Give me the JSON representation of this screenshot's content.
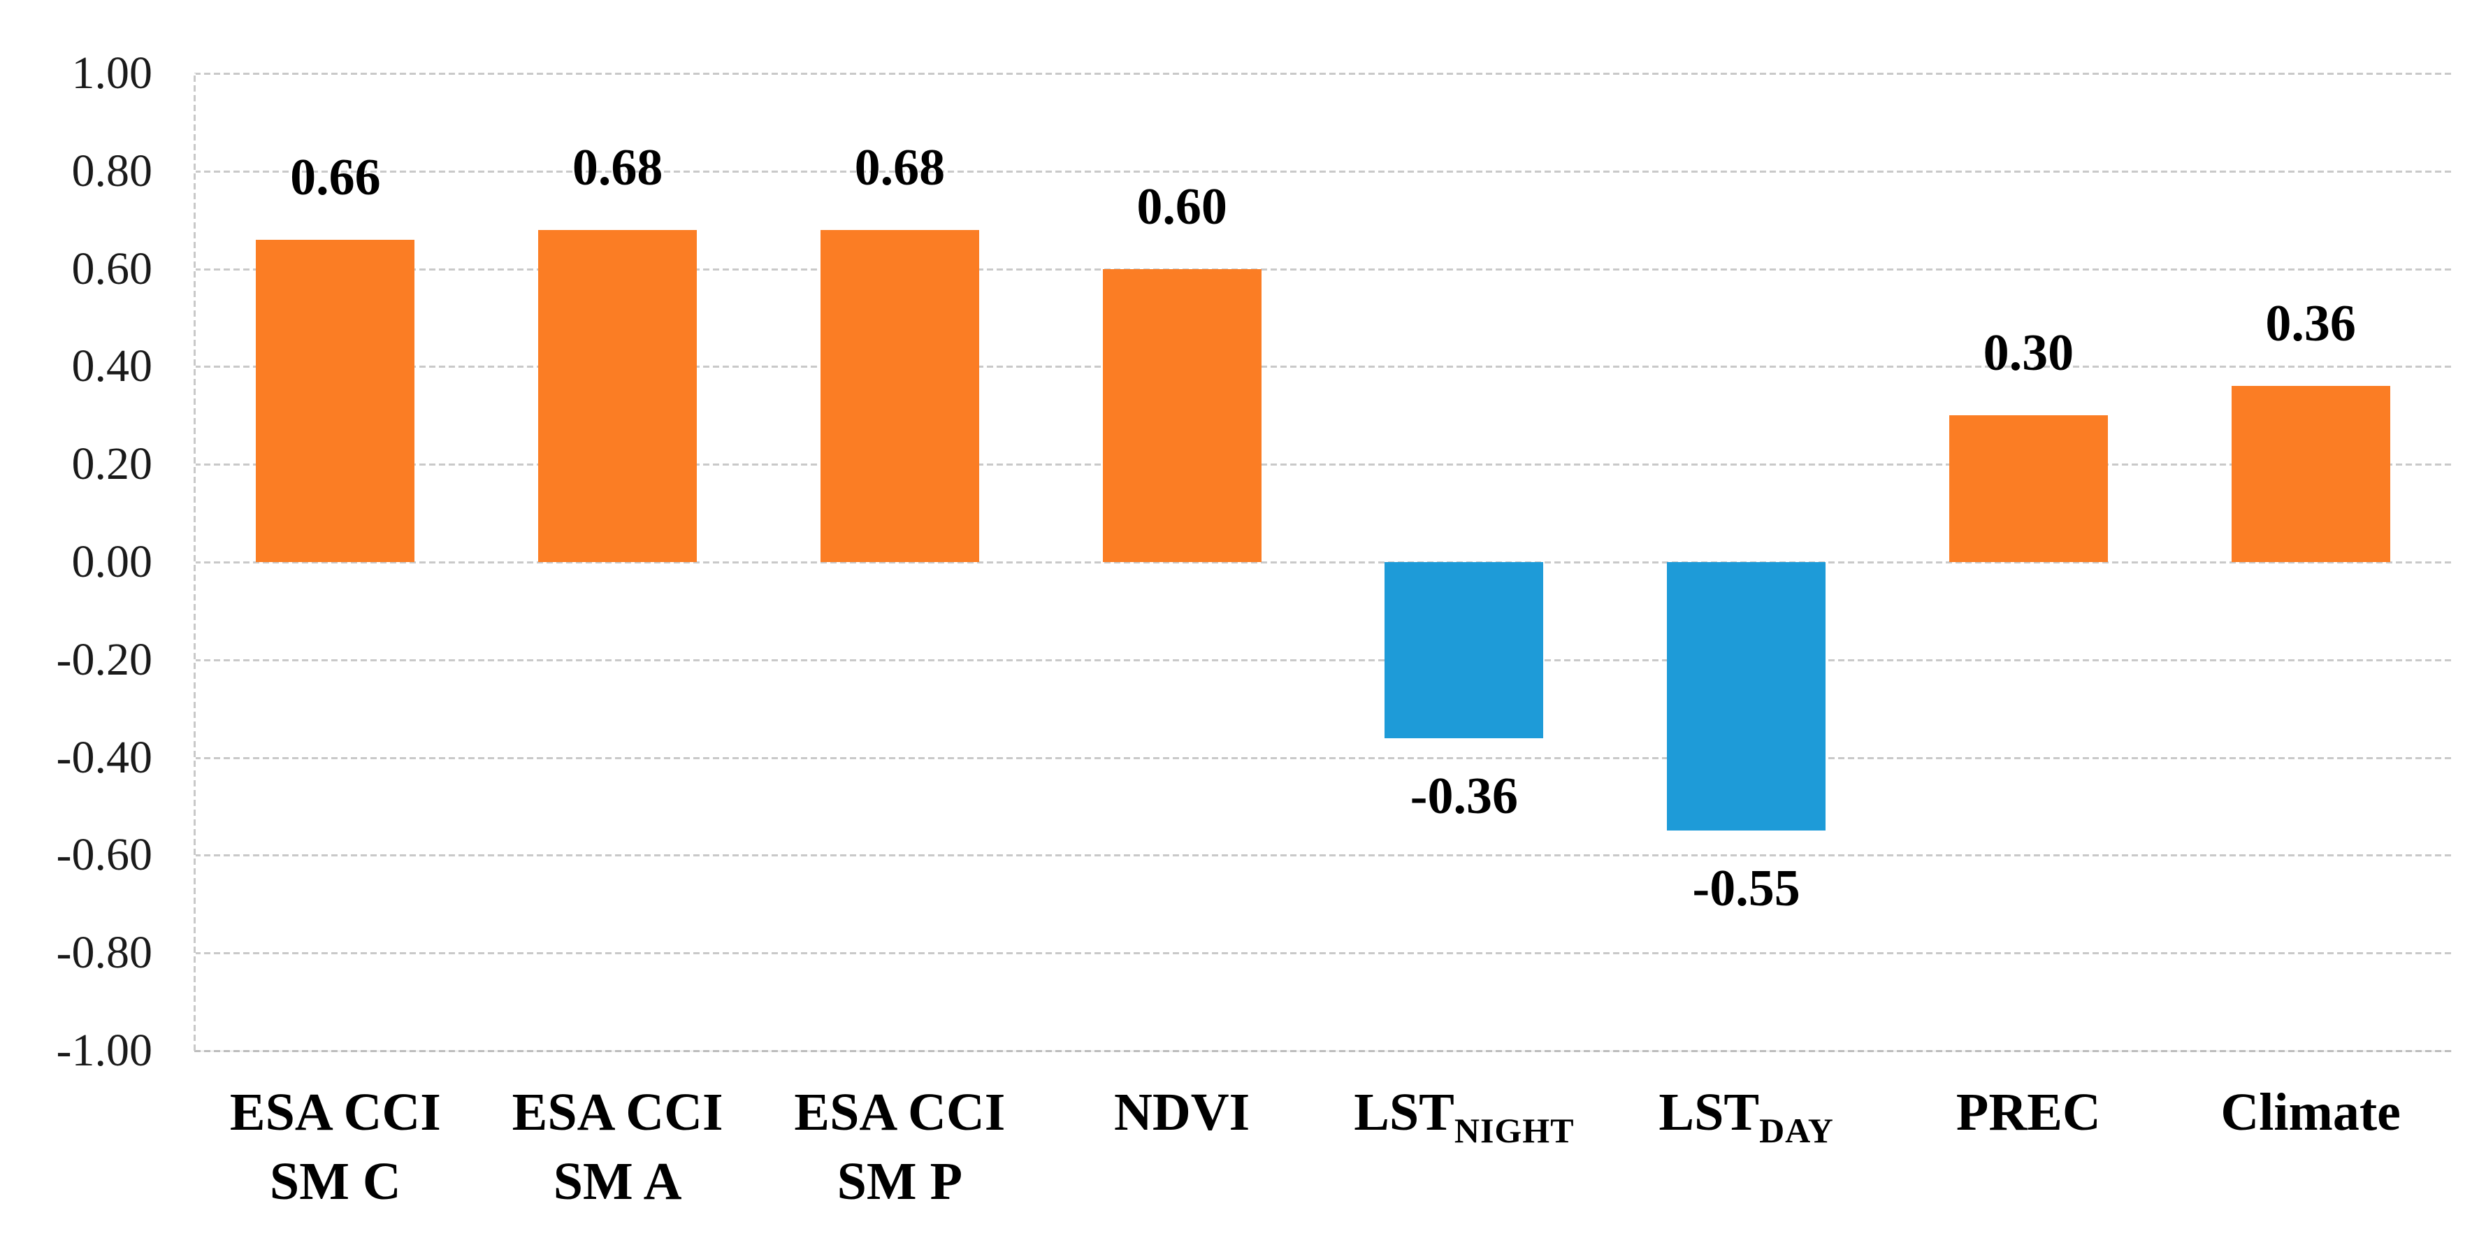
{
  "figure": {
    "background": "#ffffff",
    "description": "Bar chart of correlation coefficients for drought-related variables"
  },
  "chart_data": {
    "type": "bar",
    "title": "",
    "xlabel": "",
    "ylabel": "",
    "categories": [
      {
        "line1": "ESA CCI",
        "line2": "SM C"
      },
      {
        "line1": "ESA CCI",
        "line2": "SM A"
      },
      {
        "line1": "ESA CCI",
        "line2": "SM P"
      },
      {
        "line1": "NDVI"
      },
      {
        "line1": "LST",
        "subscript": "NIGHT"
      },
      {
        "line1": "LST",
        "subscript": "DAY"
      },
      {
        "line1": "PREC"
      },
      {
        "line1": "Climate"
      }
    ],
    "values": [
      0.66,
      0.68,
      0.68,
      0.6,
      -0.36,
      -0.55,
      0.3,
      0.36
    ],
    "data_labels": [
      "0.66",
      "0.68",
      "0.68",
      "0.60",
      "-0.36",
      "-0.55",
      "0.30",
      "0.36"
    ],
    "ylim": [
      -1.0,
      1.0
    ],
    "yticks": [
      {
        "value": 1.0,
        "label": "1.00"
      },
      {
        "value": 0.8,
        "label": "0.80"
      },
      {
        "value": 0.6,
        "label": "0.60"
      },
      {
        "value": 0.4,
        "label": "0.40"
      },
      {
        "value": 0.2,
        "label": "0.20"
      },
      {
        "value": 0.0,
        "label": "0.00"
      },
      {
        "value": -0.2,
        "label": "-0.20"
      },
      {
        "value": -0.4,
        "label": "-0.40"
      },
      {
        "value": -0.6,
        "label": "-0.60"
      },
      {
        "value": -0.8,
        "label": "-0.80"
      },
      {
        "value": -1.0,
        "label": "-1.00"
      }
    ],
    "grid": true,
    "legend_position": "none",
    "colors": {
      "positive_bar": "#FB7D24",
      "negative_bar": "#1E9BD8",
      "gridline": "#C9C9C9",
      "text": "#000000"
    }
  }
}
